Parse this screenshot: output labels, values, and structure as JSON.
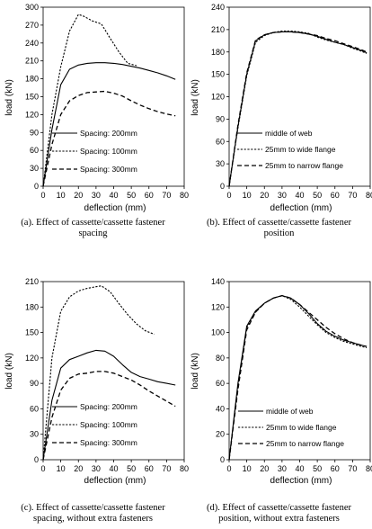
{
  "chart_data": [
    {
      "type": "line",
      "xlabel": "deflection (mm)",
      "ylabel": "load (kN)",
      "xlim": [
        0,
        80
      ],
      "ylim": [
        0,
        300
      ],
      "xticks": [
        0,
        10,
        20,
        30,
        40,
        50,
        60,
        70,
        80
      ],
      "yticks": [
        0,
        30,
        60,
        90,
        120,
        150,
        180,
        210,
        240,
        270,
        300
      ],
      "legend": "inside-bottom",
      "series": [
        {
          "name": "Spacing: 200mm",
          "style": "solid",
          "x": [
            0,
            5,
            10,
            15,
            20,
            25,
            30,
            35,
            40,
            45,
            50,
            55,
            60,
            65,
            70,
            75
          ],
          "y": [
            0,
            95,
            170,
            196,
            203,
            206,
            207,
            207,
            206,
            204,
            201,
            198,
            194,
            190,
            185,
            179
          ]
        },
        {
          "name": "Spacing: 100mm",
          "style": "dotted",
          "x": [
            0,
            5,
            10,
            15,
            20,
            23,
            28,
            33,
            38,
            43,
            48,
            53
          ],
          "y": [
            0,
            120,
            200,
            260,
            288,
            285,
            277,
            272,
            248,
            225,
            206,
            202
          ]
        },
        {
          "name": "Spacing: 300mm",
          "style": "dashed",
          "x": [
            0,
            5,
            10,
            15,
            20,
            25,
            30,
            35,
            40,
            45,
            50,
            55,
            60,
            65,
            70,
            75
          ],
          "y": [
            0,
            70,
            120,
            143,
            152,
            157,
            158,
            159,
            156,
            151,
            143,
            136,
            130,
            125,
            121,
            118
          ]
        }
      ],
      "caption": [
        "(a). Effect of cassette/cassette fastener",
        "spacing"
      ]
    },
    {
      "type": "line",
      "xlabel": "deflection (mm)",
      "ylabel": "load (kN)",
      "xlim": [
        0,
        80
      ],
      "ylim": [
        0,
        240
      ],
      "xticks": [
        0,
        10,
        20,
        30,
        40,
        50,
        60,
        70,
        80
      ],
      "yticks": [
        0,
        30,
        60,
        90,
        120,
        150,
        180,
        210,
        240
      ],
      "legend": "inside-bottom",
      "series": [
        {
          "name": "middle of web",
          "style": "solid",
          "x": [
            0,
            5,
            10,
            15,
            20,
            25,
            30,
            35,
            40,
            45,
            50,
            55,
            60,
            65,
            70,
            75,
            78
          ],
          "y": [
            0,
            80,
            150,
            195,
            203,
            206,
            207,
            207,
            206,
            204,
            201,
            197,
            193,
            190,
            186,
            182,
            179
          ]
        },
        {
          "name": "25mm to wide flange",
          "style": "dotted",
          "x": [
            0,
            5,
            10,
            15,
            20,
            25,
            30,
            35,
            40,
            45,
            50,
            55,
            60,
            65,
            70,
            75,
            78
          ],
          "y": [
            0,
            78,
            148,
            193,
            202,
            206,
            208,
            208,
            207,
            205,
            200,
            196,
            193,
            190,
            185,
            181,
            178
          ]
        },
        {
          "name": "25mm to narrow flange",
          "style": "dashed",
          "x": [
            0,
            5,
            10,
            15,
            20,
            25,
            30,
            35,
            40,
            45,
            50,
            55,
            60,
            65,
            70,
            75,
            78
          ],
          "y": [
            0,
            82,
            152,
            196,
            203,
            206,
            207,
            207,
            206,
            204,
            202,
            198,
            195,
            191,
            187,
            183,
            180
          ]
        }
      ],
      "caption": [
        "(b). Effect of cassette/cassette fastener",
        "position"
      ]
    },
    {
      "type": "line",
      "xlabel": "deflection (mm)",
      "ylabel": "load (kN)",
      "xlim": [
        0,
        80
      ],
      "ylim": [
        0,
        210
      ],
      "xticks": [
        0,
        10,
        20,
        30,
        40,
        50,
        60,
        70,
        80
      ],
      "yticks": [
        0,
        30,
        60,
        90,
        120,
        150,
        180,
        210
      ],
      "legend": "inside-bottom",
      "series": [
        {
          "name": "Spacing: 200mm",
          "style": "solid",
          "x": [
            0,
            5,
            10,
            15,
            20,
            25,
            30,
            35,
            40,
            45,
            50,
            55,
            60,
            65,
            70,
            75
          ],
          "y": [
            0,
            70,
            108,
            118,
            122,
            126,
            129,
            128,
            122,
            112,
            103,
            98,
            95,
            92,
            90,
            88
          ]
        },
        {
          "name": "Spacing: 100mm",
          "style": "dotted",
          "x": [
            0,
            5,
            10,
            15,
            20,
            25,
            30,
            33,
            38,
            43,
            48,
            53,
            58,
            63
          ],
          "y": [
            0,
            120,
            175,
            192,
            199,
            202,
            204,
            205,
            198,
            184,
            171,
            160,
            152,
            148
          ]
        },
        {
          "name": "Spacing: 300mm",
          "style": "dashed",
          "x": [
            0,
            5,
            10,
            15,
            20,
            25,
            30,
            35,
            40,
            45,
            50,
            55,
            60,
            65,
            70,
            75
          ],
          "y": [
            0,
            50,
            82,
            96,
            101,
            102,
            104,
            104,
            102,
            98,
            94,
            88,
            81,
            75,
            69,
            63
          ]
        }
      ],
      "caption": [
        "(c). Effect of cassette/cassette fastener",
        "spacing, without extra fasteners"
      ]
    },
    {
      "type": "line",
      "xlabel": "deflection (mm)",
      "ylabel": "load (kN)",
      "xlim": [
        0,
        80
      ],
      "ylim": [
        0,
        140
      ],
      "xticks": [
        0,
        10,
        20,
        30,
        40,
        50,
        60,
        70,
        80
      ],
      "yticks": [
        0,
        20,
        40,
        60,
        80,
        100,
        120,
        140
      ],
      "legend": "inside-bottom",
      "series": [
        {
          "name": "middle of web",
          "style": "solid",
          "x": [
            0,
            5,
            10,
            15,
            20,
            25,
            30,
            35,
            40,
            45,
            50,
            55,
            60,
            65,
            70,
            75,
            78
          ],
          "y": [
            0,
            60,
            105,
            117,
            123,
            127,
            129,
            127,
            122,
            115,
            107,
            101,
            97,
            94,
            92,
            90,
            89
          ]
        },
        {
          "name": "25mm to wide flange",
          "style": "dotted",
          "x": [
            0,
            5,
            10,
            15,
            20,
            25,
            30,
            35,
            40,
            45,
            50,
            55,
            60,
            65,
            70,
            75,
            78
          ],
          "y": [
            0,
            58,
            104,
            116,
            123,
            127,
            129,
            126,
            120,
            113,
            106,
            100,
            96,
            93,
            91,
            89,
            88
          ]
        },
        {
          "name": "25mm to narrow flange",
          "style": "dashed",
          "x": [
            0,
            5,
            10,
            15,
            20,
            25,
            30,
            35,
            40,
            45,
            50,
            55,
            60,
            65,
            70,
            75,
            78
          ],
          "y": [
            0,
            55,
            102,
            116,
            123,
            127,
            129,
            127,
            122,
            116,
            110,
            104,
            99,
            95,
            92,
            90,
            89
          ]
        }
      ],
      "caption": [
        "(d). Effect of cassette/cassette fastener",
        "position, without extra fasteners"
      ]
    }
  ]
}
